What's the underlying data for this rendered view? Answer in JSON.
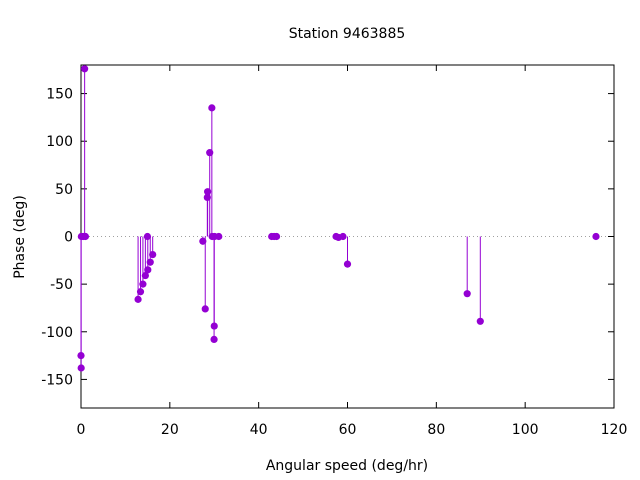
{
  "chart_data": {
    "type": "scatter",
    "style": "impulses-with-points",
    "title": "Station 9463885",
    "xlabel": "Angular speed (deg/hr)",
    "ylabel": "Phase (deg)",
    "xlim": [
      0,
      120
    ],
    "ylim": [
      -180,
      180
    ],
    "xticks": [
      0,
      20,
      40,
      60,
      80,
      100,
      120
    ],
    "yticks": [
      -150,
      -100,
      -50,
      0,
      50,
      100,
      150
    ],
    "xtick_labels": [
      "0",
      "20",
      "40",
      "60",
      "80",
      "100",
      "120"
    ],
    "ytick_labels": [
      "-150",
      "-100",
      "-50",
      "0",
      "50",
      "100",
      "150"
    ],
    "grid": false,
    "zero_line": "dotted",
    "series_color": "#9400d3",
    "points": [
      {
        "x": 0.0,
        "y": -125
      },
      {
        "x": 0.04,
        "y": -138
      },
      {
        "x": 0.08,
        "y": 0
      },
      {
        "x": 0.5,
        "y": 0
      },
      {
        "x": 0.82,
        "y": 176
      },
      {
        "x": 1.0,
        "y": 0
      },
      {
        "x": 12.85,
        "y": -66
      },
      {
        "x": 13.4,
        "y": -58
      },
      {
        "x": 13.94,
        "y": -50
      },
      {
        "x": 14.49,
        "y": -41
      },
      {
        "x": 14.96,
        "y": 0
      },
      {
        "x": 15.04,
        "y": -35
      },
      {
        "x": 15.59,
        "y": -27
      },
      {
        "x": 16.14,
        "y": -19
      },
      {
        "x": 27.43,
        "y": -5
      },
      {
        "x": 27.97,
        "y": -76
      },
      {
        "x": 28.44,
        "y": 41
      },
      {
        "x": 28.51,
        "y": 47
      },
      {
        "x": 28.98,
        "y": 88
      },
      {
        "x": 29.46,
        "y": 135
      },
      {
        "x": 29.53,
        "y": 0
      },
      {
        "x": 29.96,
        "y": -108
      },
      {
        "x": 30.0,
        "y": -94
      },
      {
        "x": 30.08,
        "y": 0
      },
      {
        "x": 31.02,
        "y": 0
      },
      {
        "x": 42.93,
        "y": 0
      },
      {
        "x": 43.48,
        "y": 0
      },
      {
        "x": 44.03,
        "y": 0
      },
      {
        "x": 57.42,
        "y": 0
      },
      {
        "x": 57.97,
        "y": -1
      },
      {
        "x": 58.98,
        "y": 0
      },
      {
        "x": 60.0,
        "y": -29
      },
      {
        "x": 86.95,
        "y": -60
      },
      {
        "x": 89.9,
        "y": -89
      },
      {
        "x": 115.94,
        "y": 0
      }
    ]
  }
}
